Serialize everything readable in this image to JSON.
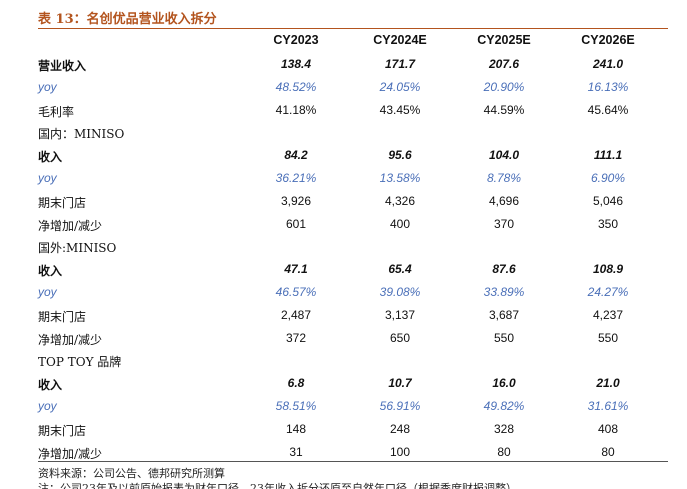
{
  "title": "表 13：名创优品营业收入拆分",
  "columns": [
    "CY2023",
    "CY2024E",
    "CY2025E",
    "CY2026E"
  ],
  "rows": [
    {
      "label": "营业收入",
      "values": [
        "138.4",
        "171.7",
        "207.6",
        "241.0"
      ],
      "style": "bold"
    },
    {
      "label": "yoy",
      "values": [
        "48.52%",
        "24.05%",
        "20.90%",
        "16.13%"
      ],
      "style": "yoy"
    },
    {
      "label": "毛利率",
      "values": [
        "41.18%",
        "43.45%",
        "44.59%",
        "45.64%"
      ],
      "style": "normal"
    },
    {
      "label": "国内：MINISO",
      "values": [
        "",
        "",
        "",
        ""
      ],
      "style": "section"
    },
    {
      "label": "收入",
      "values": [
        "84.2",
        "95.6",
        "104.0",
        "111.1"
      ],
      "style": "bold"
    },
    {
      "label": "yoy",
      "values": [
        "36.21%",
        "13.58%",
        "8.78%",
        "6.90%"
      ],
      "style": "yoy"
    },
    {
      "label": "期末门店",
      "values": [
        "3,926",
        "4,326",
        "4,696",
        "5,046"
      ],
      "style": "normal"
    },
    {
      "label": "净增加/减少",
      "values": [
        "601",
        "400",
        "370",
        "350"
      ],
      "style": "normal"
    },
    {
      "label": "国外:MINISO",
      "values": [
        "",
        "",
        "",
        ""
      ],
      "style": "section"
    },
    {
      "label": "收入",
      "values": [
        "47.1",
        "65.4",
        "87.6",
        "108.9"
      ],
      "style": "bold"
    },
    {
      "label": "yoy",
      "values": [
        "46.57%",
        "39.08%",
        "33.89%",
        "24.27%"
      ],
      "style": "yoy"
    },
    {
      "label": "期末门店",
      "values": [
        "2,487",
        "3,137",
        "3,687",
        "4,237"
      ],
      "style": "normal"
    },
    {
      "label": "净增加/减少",
      "values": [
        "372",
        "650",
        "550",
        "550"
      ],
      "style": "normal"
    },
    {
      "label": "TOP TOY 品牌",
      "values": [
        "",
        "",
        "",
        ""
      ],
      "style": "section"
    },
    {
      "label": "收入",
      "values": [
        "6.8",
        "10.7",
        "16.0",
        "21.0"
      ],
      "style": "bold"
    },
    {
      "label": "yoy",
      "values": [
        "58.51%",
        "56.91%",
        "49.82%",
        "31.61%"
      ],
      "style": "yoy"
    },
    {
      "label": "期末门店",
      "values": [
        "148",
        "248",
        "328",
        "408"
      ],
      "style": "normal"
    },
    {
      "label": "净增加/减少",
      "values": [
        "31",
        "100",
        "80",
        "80"
      ],
      "style": "normal"
    }
  ],
  "source": "资料来源：公司公告、德邦研究所测算",
  "note": "注：公司23年及以前原始报表为财年口径，23年收入拆分还原至自然年口径（根据季度财报调整）"
}
